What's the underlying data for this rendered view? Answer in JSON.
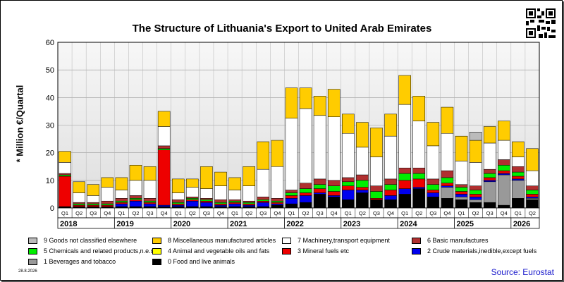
{
  "chart_data": {
    "type": "bar",
    "stacked": true,
    "title": "The Structure of Lithuania's Export to United Arab Emirates",
    "ylabel": "* Million €/Quartal",
    "ylim": [
      0,
      60
    ],
    "yticks": [
      "0",
      "10",
      "20",
      "30",
      "40",
      "50",
      "60"
    ],
    "grid": true,
    "categories": [
      "Q1",
      "Q2",
      "Q3",
      "Q4",
      "Q1",
      "Q2",
      "Q3",
      "Q4",
      "Q1",
      "Q2",
      "Q3",
      "Q4",
      "Q1",
      "Q2",
      "Q3",
      "Q4",
      "Q1",
      "Q2",
      "Q3",
      "Q4",
      "Q1",
      "Q2",
      "Q3",
      "Q4",
      "Q1",
      "Q2",
      "Q3",
      "Q4",
      "Q1",
      "Q2",
      "Q3",
      "Q4",
      "Q1",
      "Q2"
    ],
    "years": [
      {
        "label": "2018",
        "start": 0,
        "end": 3
      },
      {
        "label": "2019",
        "start": 4,
        "end": 7
      },
      {
        "label": "2020",
        "start": 8,
        "end": 11
      },
      {
        "label": "2021",
        "start": 12,
        "end": 15
      },
      {
        "label": "2022",
        "start": 16,
        "end": 19
      },
      {
        "label": "2023",
        "start": 20,
        "end": 23
      },
      {
        "label": "2024",
        "start": 24,
        "end": 27
      },
      {
        "label": "2025",
        "start": 28,
        "end": 31
      },
      {
        "label": "2026",
        "start": 32,
        "end": 33
      }
    ],
    "series": [
      {
        "name": "0 Food and live animals",
        "color": "#000000",
        "values": [
          0.5,
          0.5,
          0.5,
          0.5,
          0.5,
          0.5,
          0.5,
          0.5,
          0.5,
          0.5,
          0.5,
          0.5,
          0.5,
          0.5,
          0.5,
          1,
          1.5,
          2,
          5,
          4,
          3,
          5.5,
          3,
          3,
          5,
          7,
          4,
          3.5,
          3,
          2,
          2,
          1,
          3.5,
          3
        ]
      },
      {
        "name": "1 Beverages and tobacco",
        "color": "#999999",
        "values": [
          0,
          0,
          0,
          0,
          0,
          0,
          0,
          0,
          0,
          0,
          0,
          0,
          0,
          0,
          0,
          0,
          0,
          0,
          0,
          0,
          0,
          0,
          0,
          0,
          0,
          0,
          0,
          4,
          1,
          1,
          7.5,
          11,
          6.5,
          0.5
        ]
      },
      {
        "name": "2 Crude materials,inedible,except fuels",
        "color": "#0000ee",
        "values": [
          0,
          0,
          0,
          0,
          1,
          2,
          1,
          0.5,
          0.5,
          2,
          1.5,
          0.5,
          1,
          0.5,
          1.5,
          0.5,
          2,
          2.5,
          0.5,
          0.5,
          3.5,
          1,
          0,
          1.5,
          2,
          0.5,
          1.5,
          0.5,
          1,
          1,
          0.5,
          0.5,
          0.5,
          0.5
        ]
      },
      {
        "name": "3 Mineral fuels etc",
        "color": "#ee0000",
        "values": [
          11,
          0.5,
          0.5,
          0.5,
          0.5,
          0.5,
          0.5,
          20,
          0.5,
          0.5,
          0.5,
          0.5,
          0.5,
          0.5,
          0.5,
          0.5,
          1,
          1,
          1.5,
          1.5,
          1.5,
          1,
          0.5,
          2,
          3,
          3,
          1,
          1,
          1,
          1,
          1,
          1,
          1,
          1
        ]
      },
      {
        "name": "4 Animal and vegetable oils and fats",
        "color": "#ffff00",
        "values": [
          0,
          0,
          0,
          0,
          0,
          0,
          0,
          0,
          0,
          0,
          0,
          0,
          0,
          0,
          0,
          0,
          0,
          0,
          0,
          0,
          0,
          0,
          0,
          0,
          0,
          0,
          0,
          0,
          0,
          0,
          0,
          0,
          0,
          0
        ]
      },
      {
        "name": "5 Chemicals and related products,n.e.s.",
        "color": "#00ee00",
        "values": [
          0.5,
          0.5,
          0.5,
          0.5,
          0.5,
          0.5,
          0.5,
          0.5,
          0.5,
          0.5,
          0.5,
          0.5,
          0.5,
          0.5,
          0.5,
          0.5,
          1,
          1.5,
          1.5,
          2,
          1.5,
          2.5,
          2.5,
          2,
          2.5,
          2,
          2,
          2,
          1.5,
          1.5,
          1.5,
          2,
          1.5,
          1.5
        ]
      },
      {
        "name": "6 Basic manufactures",
        "color": "#b03030",
        "values": [
          0.5,
          0.5,
          0.5,
          1,
          1,
          1,
          1,
          1,
          1,
          0.5,
          0.5,
          1,
          0.5,
          0.5,
          1,
          1,
          1,
          2,
          2,
          2,
          1.5,
          2,
          2,
          2,
          2,
          2,
          2,
          2.5,
          1,
          1.5,
          1.5,
          2,
          2,
          1.5
        ]
      },
      {
        "name": "7 Machinery,transport equipment",
        "color": "#ffffff",
        "values": [
          4,
          3.5,
          2.5,
          5,
          3,
          5.5,
          6.5,
          7,
          2.5,
          3.5,
          3.5,
          5,
          3.5,
          5.5,
          10,
          11.5,
          26,
          27,
          23,
          23,
          16,
          10,
          10.5,
          15.5,
          23,
          17,
          12,
          13.5,
          8.5,
          8.5,
          9.5,
          7,
          3.5,
          5.5
        ]
      },
      {
        "name": "8 Miscellaneous manufactured articles",
        "color": "#ffcc00",
        "values": [
          4,
          4,
          4,
          3.5,
          4.5,
          5.5,
          5,
          5.5,
          5,
          3,
          8,
          5,
          4.5,
          7,
          10,
          9.5,
          11,
          7.5,
          7,
          10,
          7,
          9,
          10.5,
          8,
          10.5,
          9,
          8.5,
          9.5,
          9,
          8,
          6,
          7,
          5.5,
          8
        ]
      },
      {
        "name": "9 Goods not classified elsewhere",
        "color": "#bbbbbb",
        "values": [
          0,
          0,
          0,
          0,
          0,
          0,
          0,
          0,
          0,
          0,
          0,
          0,
          0,
          0,
          0,
          0,
          0,
          0,
          0,
          0,
          0,
          0,
          0,
          0,
          0,
          0,
          0,
          0,
          0,
          3,
          0,
          0,
          0,
          0
        ]
      }
    ]
  },
  "legend_order": [
    9,
    8,
    7,
    6,
    5,
    4,
    3,
    2,
    1,
    0
  ],
  "date_stamp": "28.8.2026",
  "source": "Source: Eurostat",
  "qr_icon": "qr-code-icon"
}
